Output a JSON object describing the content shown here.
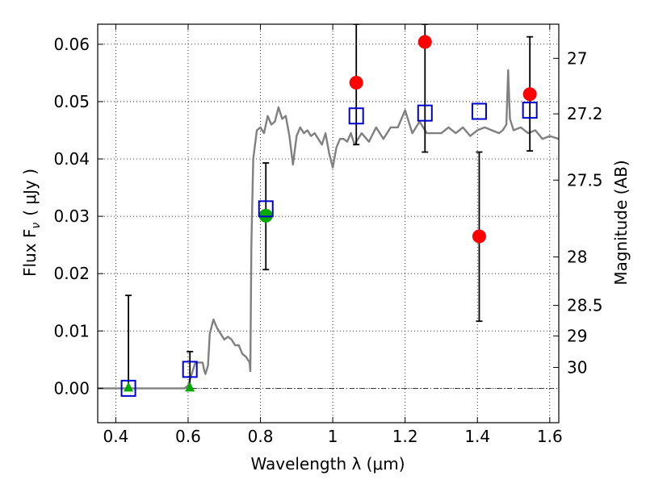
{
  "chart_data": {
    "type": "scatter",
    "xlabel": "Wavelength  λ (μm)",
    "ylabel": "Flux  F",
    "ylabel_sub": "ν",
    "ylabel_unit": "( μJy )",
    "ylabel_right": "Magnitude (AB)",
    "xlim": [
      0.35,
      1.625
    ],
    "ylim": [
      -0.006,
      0.0635
    ],
    "x_ticks": [
      {
        "v": 0.4,
        "label": "0.4"
      },
      {
        "v": 0.6,
        "label": "0.6"
      },
      {
        "v": 0.8,
        "label": "0.8"
      },
      {
        "v": 1.0,
        "label": "1"
      },
      {
        "v": 1.2,
        "label": "1.2"
      },
      {
        "v": 1.4,
        "label": "1.4"
      },
      {
        "v": 1.6,
        "label": "1.6"
      }
    ],
    "y_ticks": [
      {
        "v": 0.0,
        "label": "0.00"
      },
      {
        "v": 0.01,
        "label": "0.01"
      },
      {
        "v": 0.02,
        "label": "0.02"
      },
      {
        "v": 0.03,
        "label": "0.03"
      },
      {
        "v": 0.04,
        "label": "0.04"
      },
      {
        "v": 0.05,
        "label": "0.05"
      },
      {
        "v": 0.06,
        "label": "0.06"
      }
    ],
    "right_ticks": [
      {
        "mag": 27,
        "label": "27"
      },
      {
        "mag": 27.2,
        "label": "27.2"
      },
      {
        "mag": 27.5,
        "label": "27.5"
      },
      {
        "mag": 28,
        "label": "28"
      },
      {
        "mag": 28.5,
        "label": "28.5"
      },
      {
        "mag": 29,
        "label": "29"
      },
      {
        "mag": 30,
        "label": "30"
      }
    ],
    "grid": true,
    "colors": {
      "model": "#808080",
      "observed": "#ff0000",
      "model_photometry": "#0000cc",
      "green": "#00aa00",
      "errorbar": "#000000"
    },
    "model_spectrum": {
      "x": [
        0.35,
        0.59,
        0.6,
        0.62,
        0.64,
        0.645,
        0.648,
        0.655,
        0.66,
        0.67,
        0.68,
        0.69,
        0.7,
        0.71,
        0.72,
        0.73,
        0.74,
        0.75,
        0.76,
        0.77,
        0.772,
        0.775,
        0.78,
        0.79,
        0.8,
        0.81,
        0.82,
        0.83,
        0.84,
        0.85,
        0.86,
        0.87,
        0.88,
        0.89,
        0.9,
        0.91,
        0.92,
        0.93,
        0.94,
        0.95,
        0.96,
        0.97,
        0.98,
        0.99,
        1.0,
        1.01,
        1.02,
        1.03,
        1.04,
        1.05,
        1.06,
        1.08,
        1.1,
        1.12,
        1.14,
        1.16,
        1.18,
        1.2,
        1.22,
        1.24,
        1.26,
        1.28,
        1.3,
        1.32,
        1.34,
        1.36,
        1.38,
        1.4,
        1.42,
        1.44,
        1.46,
        1.47,
        1.48,
        1.485,
        1.49,
        1.5,
        1.52,
        1.54,
        1.56,
        1.58,
        1.6,
        1.625
      ],
      "y": [
        0.0,
        0.0,
        0.0005,
        0.0045,
        0.0045,
        0.003,
        0.0025,
        0.004,
        0.0095,
        0.012,
        0.0105,
        0.0095,
        0.0085,
        0.009,
        0.0085,
        0.0075,
        0.0075,
        0.006,
        0.0055,
        0.0045,
        0.003,
        0.025,
        0.04,
        0.045,
        0.0455,
        0.0445,
        0.0475,
        0.046,
        0.0465,
        0.049,
        0.047,
        0.0475,
        0.044,
        0.039,
        0.044,
        0.0455,
        0.0445,
        0.045,
        0.044,
        0.0445,
        0.0435,
        0.0425,
        0.0445,
        0.041,
        0.0385,
        0.042,
        0.0435,
        0.0435,
        0.043,
        0.0445,
        0.0425,
        0.0445,
        0.043,
        0.0455,
        0.0435,
        0.0455,
        0.0455,
        0.0485,
        0.0445,
        0.0465,
        0.0445,
        0.0445,
        0.0445,
        0.0455,
        0.0445,
        0.0455,
        0.044,
        0.045,
        0.0455,
        0.045,
        0.0445,
        0.045,
        0.046,
        0.0555,
        0.047,
        0.045,
        0.0455,
        0.0445,
        0.045,
        0.0435,
        0.044,
        0.0435
      ]
    },
    "observed": [
      {
        "x": 1.065,
        "y": 0.0533,
        "err_low": 0.0425,
        "err_high": 0.0635
      },
      {
        "x": 1.255,
        "y": 0.0604,
        "err_low": 0.0412,
        "err_high": 0.0635
      },
      {
        "x": 1.405,
        "y": 0.0265,
        "err_low": 0.0117,
        "err_high": 0.0412
      },
      {
        "x": 1.545,
        "y": 0.0513,
        "err_low": 0.0414,
        "err_high": 0.0613
      }
    ],
    "model_photometry": [
      {
        "x": 0.435,
        "y": 0.0
      },
      {
        "x": 0.605,
        "y": 0.0033
      },
      {
        "x": 0.815,
        "y": 0.0313
      },
      {
        "x": 1.065,
        "y": 0.0475
      },
      {
        "x": 1.255,
        "y": 0.048
      },
      {
        "x": 1.405,
        "y": 0.0483
      },
      {
        "x": 1.545,
        "y": 0.0485
      }
    ],
    "green_points": [
      {
        "x": 0.815,
        "y": 0.0301,
        "err_low": 0.0207,
        "err_high": 0.0393,
        "marker": "circle"
      },
      {
        "x": 0.435,
        "y": 0.0,
        "err_low": -0.0002,
        "err_high": 0.0162,
        "marker": "triangle"
      },
      {
        "x": 0.605,
        "y": 0.0,
        "err_low": -0.0002,
        "err_high": 0.0064,
        "marker": "triangle"
      }
    ]
  }
}
